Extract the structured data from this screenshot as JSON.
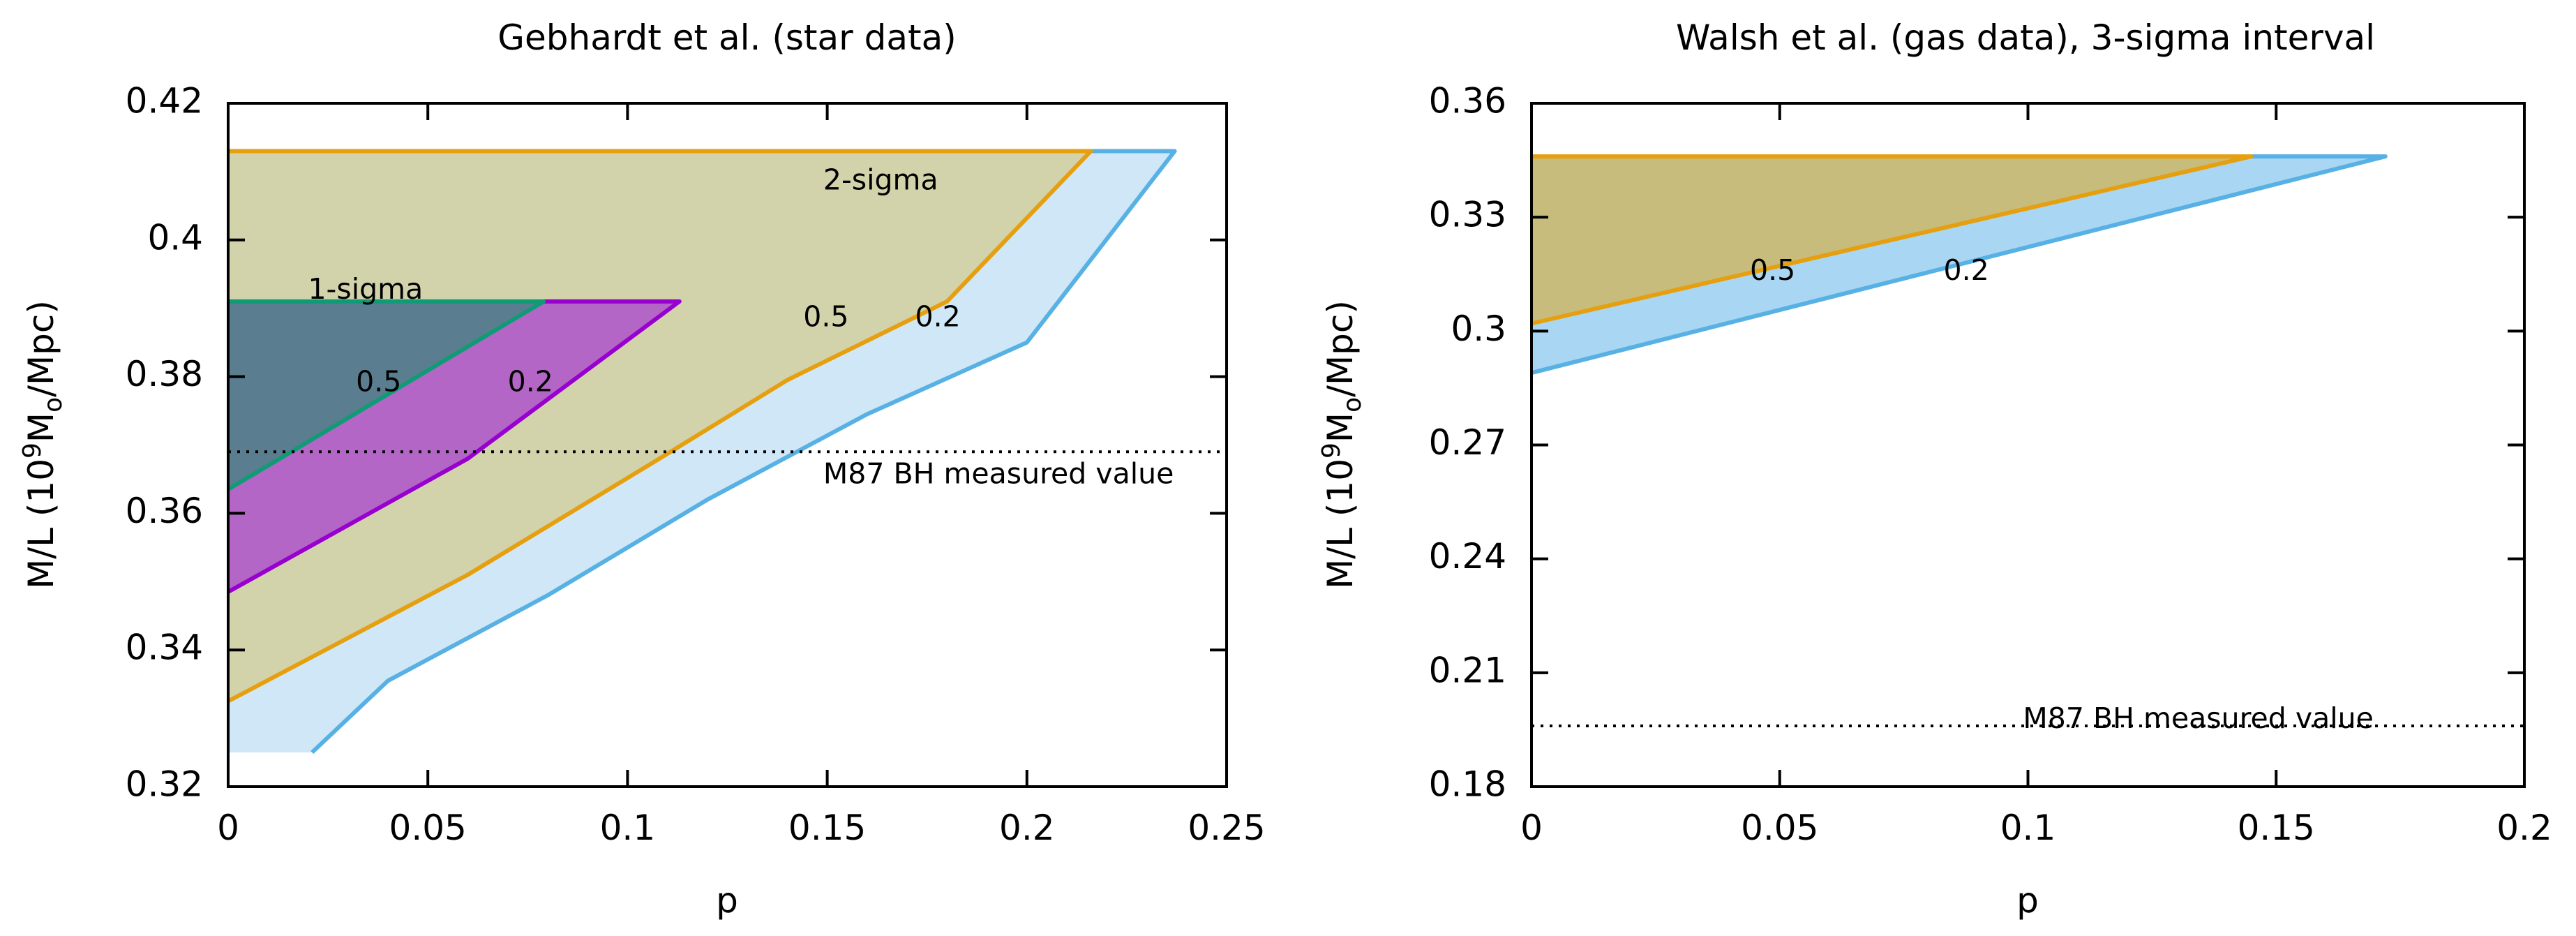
{
  "chart_data": [
    {
      "type": "area",
      "title": "Gebhardt et al. (star data)",
      "xlabel": "p",
      "ylabel": {
        "prefix": "M/L (10",
        "sup": "9",
        "mid": "M",
        "sub": "o",
        "suffix": "/Mpc)"
      },
      "xlim": [
        0,
        0.25
      ],
      "ylim": [
        0.32,
        0.42
      ],
      "xticks": [
        0,
        0.05,
        0.1,
        0.15,
        0.2,
        0.25
      ],
      "xtick_labels": [
        "0",
        "0.05",
        "0.1",
        "0.15",
        "0.2",
        "0.25"
      ],
      "yticks": [
        0.32,
        0.34,
        0.36,
        0.38,
        0.4,
        0.42
      ],
      "ytick_labels": [
        "0.32",
        "0.34",
        "0.36",
        "0.38",
        "0.4",
        "0.42"
      ],
      "regions": [
        {
          "name": "2-sigma p=0.2",
          "fill": "#cfe7f7",
          "stroke": "#57b1e4",
          "points": [
            [
              0,
              0.413
            ],
            [
              0.237,
              0.413
            ],
            [
              0.2,
              0.385
            ],
            [
              0.16,
              0.3745
            ],
            [
              0.12,
              0.362
            ],
            [
              0.08,
              0.348
            ],
            [
              0.04,
              0.3355
            ],
            [
              0.021,
              0.325
            ],
            [
              0,
              0.325
            ]
          ],
          "outline": [
            [
              0.021,
              0.325
            ],
            [
              0.04,
              0.3355
            ],
            [
              0.08,
              0.348
            ],
            [
              0.12,
              0.362
            ],
            [
              0.16,
              0.3745
            ],
            [
              0.2,
              0.385
            ],
            [
              0.237,
              0.413
            ],
            [
              0.216,
              0.413
            ]
          ]
        },
        {
          "name": "2-sigma p=0.5",
          "fill": "#d3d3ab",
          "stroke": "#e69f0f",
          "points": [
            [
              0,
              0.413
            ],
            [
              0.216,
              0.413
            ],
            [
              0.18,
              0.391
            ],
            [
              0.14,
              0.3795
            ],
            [
              0.108,
              0.368
            ],
            [
              0.06,
              0.351
            ],
            [
              0,
              0.3325
            ]
          ],
          "outline": [
            [
              0,
              0.3325
            ],
            [
              0.06,
              0.351
            ],
            [
              0.108,
              0.368
            ],
            [
              0.14,
              0.3795
            ],
            [
              0.18,
              0.391
            ],
            [
              0.216,
              0.413
            ],
            [
              0,
              0.413
            ]
          ]
        },
        {
          "name": "1-sigma p=0.2",
          "fill": "#b366c6",
          "stroke": "#9700cf",
          "points": [
            [
              0,
              0.391
            ],
            [
              0.113,
              0.391
            ],
            [
              0.06,
              0.368
            ],
            [
              0,
              0.3485
            ]
          ],
          "outline": [
            [
              0,
              0.3485
            ],
            [
              0.06,
              0.368
            ],
            [
              0.113,
              0.391
            ],
            [
              0.079,
              0.391
            ]
          ]
        },
        {
          "name": "1-sigma p=0.5",
          "fill": "#5a7e8f",
          "stroke": "#0f9b75",
          "points": [
            [
              0,
              0.391
            ],
            [
              0.079,
              0.391
            ],
            [
              0,
              0.3635
            ]
          ],
          "outline": [
            [
              0,
              0.3635
            ],
            [
              0.079,
              0.391
            ],
            [
              0,
              0.391
            ]
          ]
        }
      ],
      "reference_line": {
        "y": 0.369,
        "label": "M87 BH measured value",
        "label_at": [
          0.149,
          0.3655
        ]
      },
      "annotations": [
        {
          "text": "2-sigma",
          "at": [
            0.149,
            0.4085
          ]
        },
        {
          "text": "1-sigma",
          "at": [
            0.02,
            0.3925
          ]
        },
        {
          "text": "0.5",
          "at": [
            0.032,
            0.379
          ]
        },
        {
          "text": "0.2",
          "at": [
            0.07,
            0.379
          ]
        },
        {
          "text": "0.5",
          "at": [
            0.144,
            0.3885
          ]
        },
        {
          "text": "0.2",
          "at": [
            0.172,
            0.3885
          ]
        }
      ]
    },
    {
      "type": "area",
      "title": "Walsh et al. (gas data), 3-sigma interval",
      "xlabel": "p",
      "ylabel": {
        "prefix": "M/L (10",
        "sup": "9",
        "mid": "M",
        "sub": "o",
        "suffix": "/Mpc)"
      },
      "xlim": [
        0,
        0.2
      ],
      "ylim": [
        0.18,
        0.36
      ],
      "xticks": [
        0,
        0.05,
        0.1,
        0.15,
        0.2
      ],
      "xtick_labels": [
        "0",
        "0.05",
        "0.1",
        "0.15",
        "0.2"
      ],
      "yticks": [
        0.18,
        0.21,
        0.24,
        0.27,
        0.3,
        0.33,
        0.36
      ],
      "ytick_labels": [
        "0.18",
        "0.21",
        "0.24",
        "0.27",
        "0.3",
        "0.33",
        "0.36"
      ],
      "regions": [
        {
          "name": "3-sigma p=0.2",
          "fill": "#a9d6f2",
          "stroke": "#57b1e4",
          "points": [
            [
              0,
              0.346
            ],
            [
              0.172,
              0.346
            ],
            [
              0,
              0.289
            ]
          ],
          "outline": [
            [
              0,
              0.289
            ],
            [
              0.172,
              0.346
            ],
            [
              0.145,
              0.346
            ]
          ]
        },
        {
          "name": "3-sigma p=0.5",
          "fill": "#c8bc7c",
          "stroke": "#e69f0f",
          "points": [
            [
              0,
              0.346
            ],
            [
              0.145,
              0.346
            ],
            [
              0,
              0.302
            ]
          ],
          "outline": [
            [
              0,
              0.302
            ],
            [
              0.145,
              0.346
            ],
            [
              0,
              0.346
            ]
          ]
        }
      ],
      "reference_line": {
        "y": 0.196,
        "label": "M87 BH measured value",
        "label_at": [
          0.099,
          0.1975
        ]
      },
      "annotations": [
        {
          "text": "0.5",
          "at": [
            0.044,
            0.3155
          ]
        },
        {
          "text": "0.2",
          "at": [
            0.083,
            0.3155
          ]
        }
      ]
    }
  ]
}
